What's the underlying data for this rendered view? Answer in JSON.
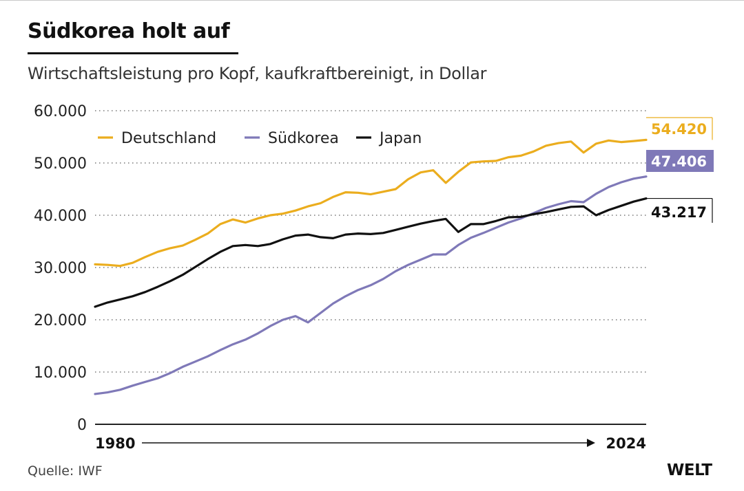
{
  "title": "Südkorea holt auf",
  "subtitle": "Wirtschaftsleistung pro Kopf, kaufkraftbereinigt, in Dollar",
  "source": "Quelle: IWF",
  "logo": "WELT",
  "chart_data": {
    "type": "line",
    "title": "Südkorea holt auf",
    "subtitle": "Wirtschaftsleistung pro Kopf, kaufkraftbereinigt, in Dollar",
    "xlabel": "",
    "ylabel": "",
    "x_start_label": "1980",
    "x_end_label": "2024",
    "x": [
      1980,
      1981,
      1982,
      1983,
      1984,
      1985,
      1986,
      1987,
      1988,
      1989,
      1990,
      1991,
      1992,
      1993,
      1994,
      1995,
      1996,
      1997,
      1998,
      1999,
      2000,
      2001,
      2002,
      2003,
      2004,
      2005,
      2006,
      2007,
      2008,
      2009,
      2010,
      2011,
      2012,
      2013,
      2014,
      2015,
      2016,
      2017,
      2018,
      2019,
      2020,
      2021,
      2022,
      2023,
      2024
    ],
    "xlim": [
      1980,
      2024
    ],
    "ylim": [
      0,
      60000
    ],
    "y_ticks": [
      0,
      10000,
      20000,
      30000,
      40000,
      50000,
      60000
    ],
    "y_tick_labels": [
      "0",
      "10.000",
      "20.000",
      "30.000",
      "40.000",
      "50.000",
      "60.000"
    ],
    "grid": true,
    "legend_position": "top-left",
    "series": [
      {
        "name": "Deutschland",
        "color": "#EBAD1E",
        "end_label": "54.420",
        "values": [
          30600,
          30500,
          30300,
          30900,
          32000,
          33000,
          33700,
          34200,
          35300,
          36500,
          38300,
          39200,
          38600,
          39400,
          40000,
          40300,
          40900,
          41700,
          42300,
          43500,
          44400,
          44300,
          44000,
          44500,
          45000,
          46900,
          48200,
          48600,
          46200,
          48300,
          50100,
          50300,
          50400,
          51100,
          51400,
          52200,
          53300,
          53800,
          54100,
          52000,
          53700,
          54300,
          54000,
          54200,
          54420
        ]
      },
      {
        "name": "Südkorea",
        "color": "#7F79B8",
        "end_label": "47.406",
        "values": [
          5800,
          6100,
          6600,
          7400,
          8100,
          8800,
          9800,
          11000,
          12000,
          13000,
          14200,
          15300,
          16200,
          17400,
          18800,
          20000,
          20700,
          19500,
          21300,
          23100,
          24500,
          25700,
          26600,
          27800,
          29300,
          30500,
          31500,
          32500,
          32500,
          34300,
          35700,
          36600,
          37600,
          38600,
          39400,
          40400,
          41400,
          42100,
          42700,
          42500,
          44100,
          45400,
          46300,
          47000,
          47406
        ]
      },
      {
        "name": "Japan",
        "color": "#111111",
        "end_label": "43.217",
        "values": [
          22500,
          23300,
          23900,
          24500,
          25300,
          26300,
          27400,
          28600,
          30100,
          31600,
          33000,
          34100,
          34300,
          34100,
          34500,
          35400,
          36100,
          36300,
          35800,
          35600,
          36300,
          36500,
          36400,
          36600,
          37200,
          37800,
          38400,
          38900,
          39300,
          36800,
          38300,
          38300,
          38900,
          39600,
          39700,
          40200,
          40600,
          41100,
          41600,
          41700,
          40000,
          41000,
          41800,
          42600,
          43217
        ]
      }
    ]
  }
}
